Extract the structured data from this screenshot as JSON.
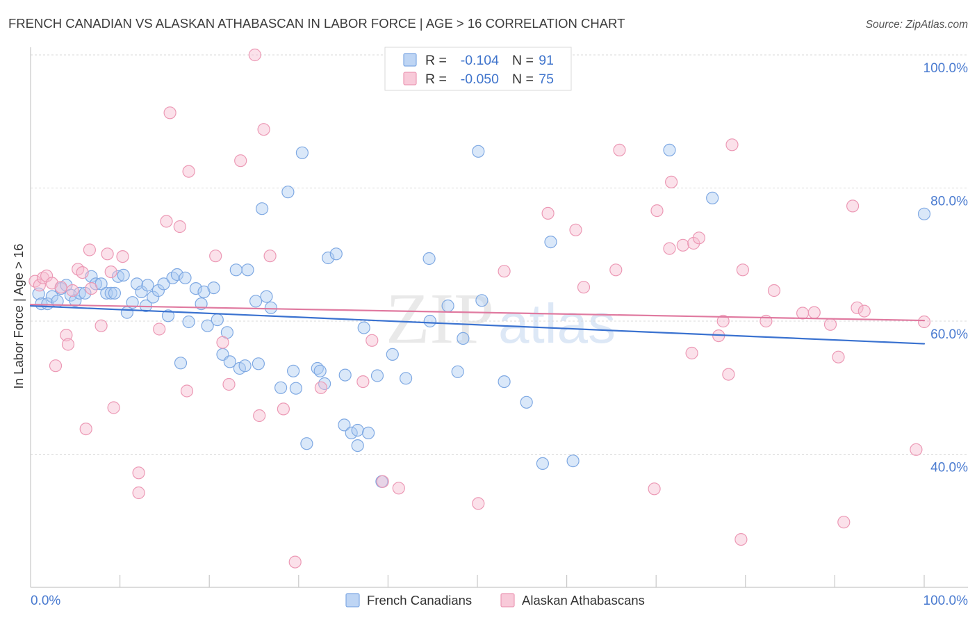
{
  "source": "Source: ZipAtlas.com",
  "watermark": {
    "zip": "ZIP",
    "atlas": "atlas"
  },
  "chart_data": {
    "type": "scatter",
    "title": "FRENCH CANADIAN VS ALASKAN ATHABASCAN IN LABOR FORCE | AGE > 16 CORRELATION CHART",
    "xlabel": "",
    "ylabel": "In Labor Force | Age > 16",
    "xlim": [
      0,
      100
    ],
    "ylim": [
      20,
      100
    ],
    "x_tick_values": [
      0,
      100
    ],
    "x_tick_labels": [
      "0.0%",
      "100.0%"
    ],
    "x_tick_marks": [
      10,
      20,
      30,
      40,
      50,
      60,
      70,
      80,
      90,
      100
    ],
    "y_tick_values": [
      100,
      80,
      60,
      40
    ],
    "y_tick_labels": [
      "100.0%",
      "80.0%",
      "60.0%",
      "40.0%"
    ],
    "grid": true,
    "legend": {
      "r_label": "R =",
      "n_label": "N ="
    },
    "colors": {
      "tick_label": "#4a7bd0",
      "legend_value": "#3f74cc"
    },
    "series": [
      {
        "name": "French Canadians",
        "r": "-0.104",
        "n": "91",
        "line_color": "#3a72d0",
        "fill": "#aecbf1",
        "stroke": "#7fa9e3",
        "trend": {
          "x": [
            0,
            100
          ],
          "y": [
            62.3,
            56.6
          ]
        },
        "points": [
          [
            0.9,
            64.1
          ],
          [
            1.2,
            62.6
          ],
          [
            1.9,
            62.6
          ],
          [
            2.4,
            63.7
          ],
          [
            3.0,
            63.0
          ],
          [
            3.4,
            64.9
          ],
          [
            4.0,
            65.4
          ],
          [
            4.5,
            63.9
          ],
          [
            5.0,
            63.1
          ],
          [
            5.5,
            64.2
          ],
          [
            6.1,
            64.2
          ],
          [
            6.8,
            66.7
          ],
          [
            7.3,
            65.6
          ],
          [
            7.9,
            65.6
          ],
          [
            8.5,
            64.2
          ],
          [
            9.0,
            64.2
          ],
          [
            9.4,
            64.2
          ],
          [
            9.8,
            66.7
          ],
          [
            10.4,
            66.9
          ],
          [
            10.8,
            61.3
          ],
          [
            11.4,
            62.8
          ],
          [
            11.9,
            65.6
          ],
          [
            12.4,
            64.4
          ],
          [
            12.9,
            62.3
          ],
          [
            13.1,
            65.4
          ],
          [
            13.7,
            63.6
          ],
          [
            14.3,
            64.6
          ],
          [
            14.9,
            65.6
          ],
          [
            15.4,
            60.8
          ],
          [
            15.9,
            66.5
          ],
          [
            16.4,
            67.0
          ],
          [
            16.8,
            53.7
          ],
          [
            17.3,
            66.5
          ],
          [
            17.7,
            59.9
          ],
          [
            18.5,
            64.9
          ],
          [
            19.1,
            62.6
          ],
          [
            19.4,
            64.4
          ],
          [
            19.8,
            59.3
          ],
          [
            20.5,
            65.0
          ],
          [
            20.9,
            60.2
          ],
          [
            21.5,
            55.0
          ],
          [
            22.0,
            58.3
          ],
          [
            22.3,
            53.9
          ],
          [
            23.0,
            67.7
          ],
          [
            23.4,
            52.9
          ],
          [
            24.0,
            53.3
          ],
          [
            24.3,
            67.7
          ],
          [
            25.2,
            63.0
          ],
          [
            25.5,
            53.6
          ],
          [
            25.9,
            76.9
          ],
          [
            26.4,
            63.7
          ],
          [
            26.9,
            62.0
          ],
          [
            28.0,
            50.0
          ],
          [
            28.8,
            79.4
          ],
          [
            29.4,
            52.5
          ],
          [
            29.7,
            49.9
          ],
          [
            30.4,
            85.3
          ],
          [
            30.9,
            41.6
          ],
          [
            32.1,
            52.9
          ],
          [
            32.4,
            52.5
          ],
          [
            32.9,
            50.6
          ],
          [
            33.3,
            69.5
          ],
          [
            34.2,
            70.1
          ],
          [
            35.1,
            44.4
          ],
          [
            35.2,
            51.9
          ],
          [
            35.9,
            43.2
          ],
          [
            36.6,
            43.6
          ],
          [
            36.6,
            41.3
          ],
          [
            37.3,
            59.0
          ],
          [
            37.8,
            43.2
          ],
          [
            38.8,
            51.8
          ],
          [
            39.3,
            35.9
          ],
          [
            40.5,
            55.0
          ],
          [
            42.0,
            51.4
          ],
          [
            44.6,
            69.4
          ],
          [
            44.7,
            60.0
          ],
          [
            46.7,
            62.3
          ],
          [
            47.8,
            52.4
          ],
          [
            48.4,
            57.4
          ],
          [
            50.1,
            85.5
          ],
          [
            50.5,
            63.1
          ],
          [
            53.0,
            50.9
          ],
          [
            55.5,
            47.8
          ],
          [
            57.3,
            38.6
          ],
          [
            58.2,
            71.9
          ],
          [
            60.7,
            39.0
          ],
          [
            71.5,
            85.7
          ],
          [
            76.3,
            78.5
          ],
          [
            100.0,
            76.1
          ]
        ]
      },
      {
        "name": "Alaskan Athabascans",
        "r": "-0.050",
        "n": "75",
        "line_color": "#e07aa0",
        "fill": "#f6bdd0",
        "stroke": "#ec99b5",
        "trend": {
          "x": [
            0,
            100
          ],
          "y": [
            62.5,
            60.1
          ]
        },
        "points": [
          [
            0.5,
            66.0
          ],
          [
            1.0,
            65.4
          ],
          [
            1.4,
            66.5
          ],
          [
            1.8,
            66.8
          ],
          [
            2.4,
            65.7
          ],
          [
            2.8,
            53.3
          ],
          [
            3.4,
            65.1
          ],
          [
            4.0,
            57.9
          ],
          [
            4.2,
            56.5
          ],
          [
            4.7,
            64.6
          ],
          [
            5.3,
            67.8
          ],
          [
            5.8,
            67.3
          ],
          [
            6.2,
            43.8
          ],
          [
            6.6,
            70.7
          ],
          [
            6.8,
            64.9
          ],
          [
            7.9,
            59.3
          ],
          [
            8.6,
            70.1
          ],
          [
            9.0,
            67.4
          ],
          [
            9.3,
            47.0
          ],
          [
            10.3,
            69.7
          ],
          [
            12.1,
            37.2
          ],
          [
            12.1,
            34.2
          ],
          [
            14.4,
            58.8
          ],
          [
            15.2,
            75.0
          ],
          [
            15.6,
            91.3
          ],
          [
            16.7,
            74.2
          ],
          [
            17.5,
            49.5
          ],
          [
            17.7,
            82.5
          ],
          [
            20.7,
            69.8
          ],
          [
            21.5,
            56.8
          ],
          [
            22.2,
            50.5
          ],
          [
            23.5,
            84.1
          ],
          [
            25.1,
            100.0
          ],
          [
            25.6,
            45.8
          ],
          [
            26.1,
            88.8
          ],
          [
            26.8,
            69.8
          ],
          [
            28.3,
            46.8
          ],
          [
            29.6,
            23.8
          ],
          [
            32.5,
            50.0
          ],
          [
            37.2,
            50.9
          ],
          [
            38.2,
            57.1
          ],
          [
            39.4,
            35.9
          ],
          [
            41.2,
            34.9
          ],
          [
            50.1,
            32.6
          ],
          [
            53.0,
            67.5
          ],
          [
            57.9,
            76.2
          ],
          [
            61.0,
            73.7
          ],
          [
            61.9,
            65.1
          ],
          [
            65.5,
            67.7
          ],
          [
            65.9,
            85.7
          ],
          [
            69.8,
            34.8
          ],
          [
            70.1,
            76.6
          ],
          [
            71.5,
            70.9
          ],
          [
            71.7,
            80.9
          ],
          [
            73.0,
            71.4
          ],
          [
            74.0,
            55.2
          ],
          [
            74.2,
            71.7
          ],
          [
            74.8,
            72.5
          ],
          [
            77.0,
            57.8
          ],
          [
            77.5,
            60.0
          ],
          [
            78.1,
            52.0
          ],
          [
            78.5,
            86.5
          ],
          [
            79.5,
            27.2
          ],
          [
            79.7,
            67.7
          ],
          [
            82.3,
            60.0
          ],
          [
            83.2,
            64.6
          ],
          [
            86.4,
            61.2
          ],
          [
            87.7,
            61.3
          ],
          [
            89.5,
            59.5
          ],
          [
            90.4,
            54.6
          ],
          [
            91.0,
            29.8
          ],
          [
            92.0,
            77.3
          ],
          [
            92.5,
            62.0
          ],
          [
            93.3,
            61.5
          ],
          [
            99.1,
            40.7
          ],
          [
            100.0,
            59.9
          ]
        ]
      }
    ]
  }
}
